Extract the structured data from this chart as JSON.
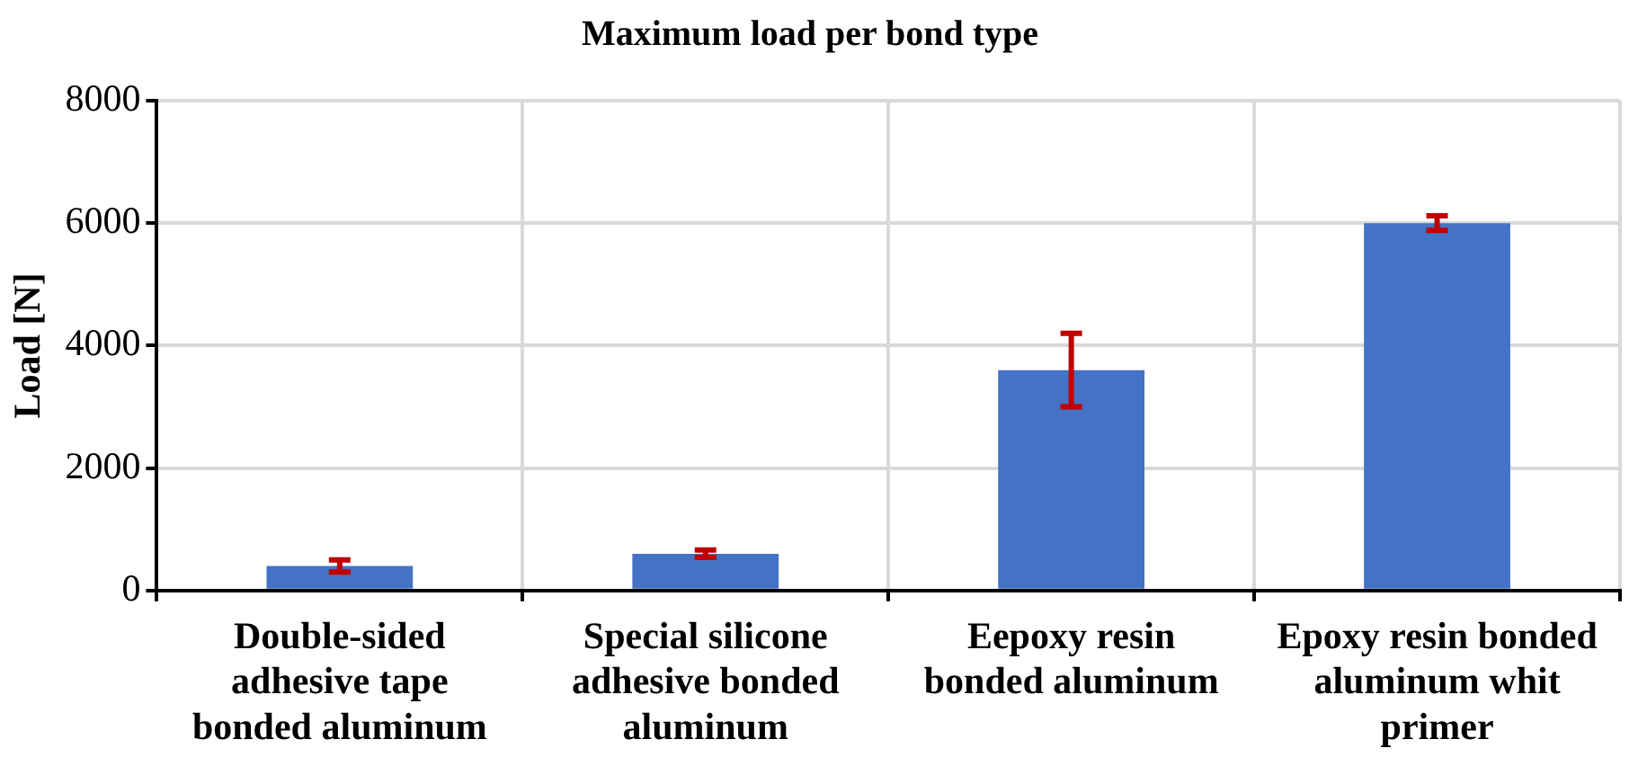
{
  "chart_data": {
    "type": "bar",
    "title": "Maximum load per bond type",
    "ylabel": "Load [N]",
    "categories": [
      "Double-sided adhesive tape bonded aluminum",
      "Special silicone adhesive  bonded aluminum",
      "Eepoxy resin bonded aluminum",
      "Epoxy resin bonded aluminum whit primer"
    ],
    "values": [
      400,
      600,
      3600,
      6000
    ],
    "color": "#4472c4",
    "errors": [
      100,
      60,
      [
        3000,
        4200
      ],
      [
        5880,
        6120
      ]
    ],
    "ylim": [
      0,
      8000
    ],
    "yticks": [
      0,
      2000,
      4000,
      6000,
      8000
    ],
    "grid": true
  }
}
